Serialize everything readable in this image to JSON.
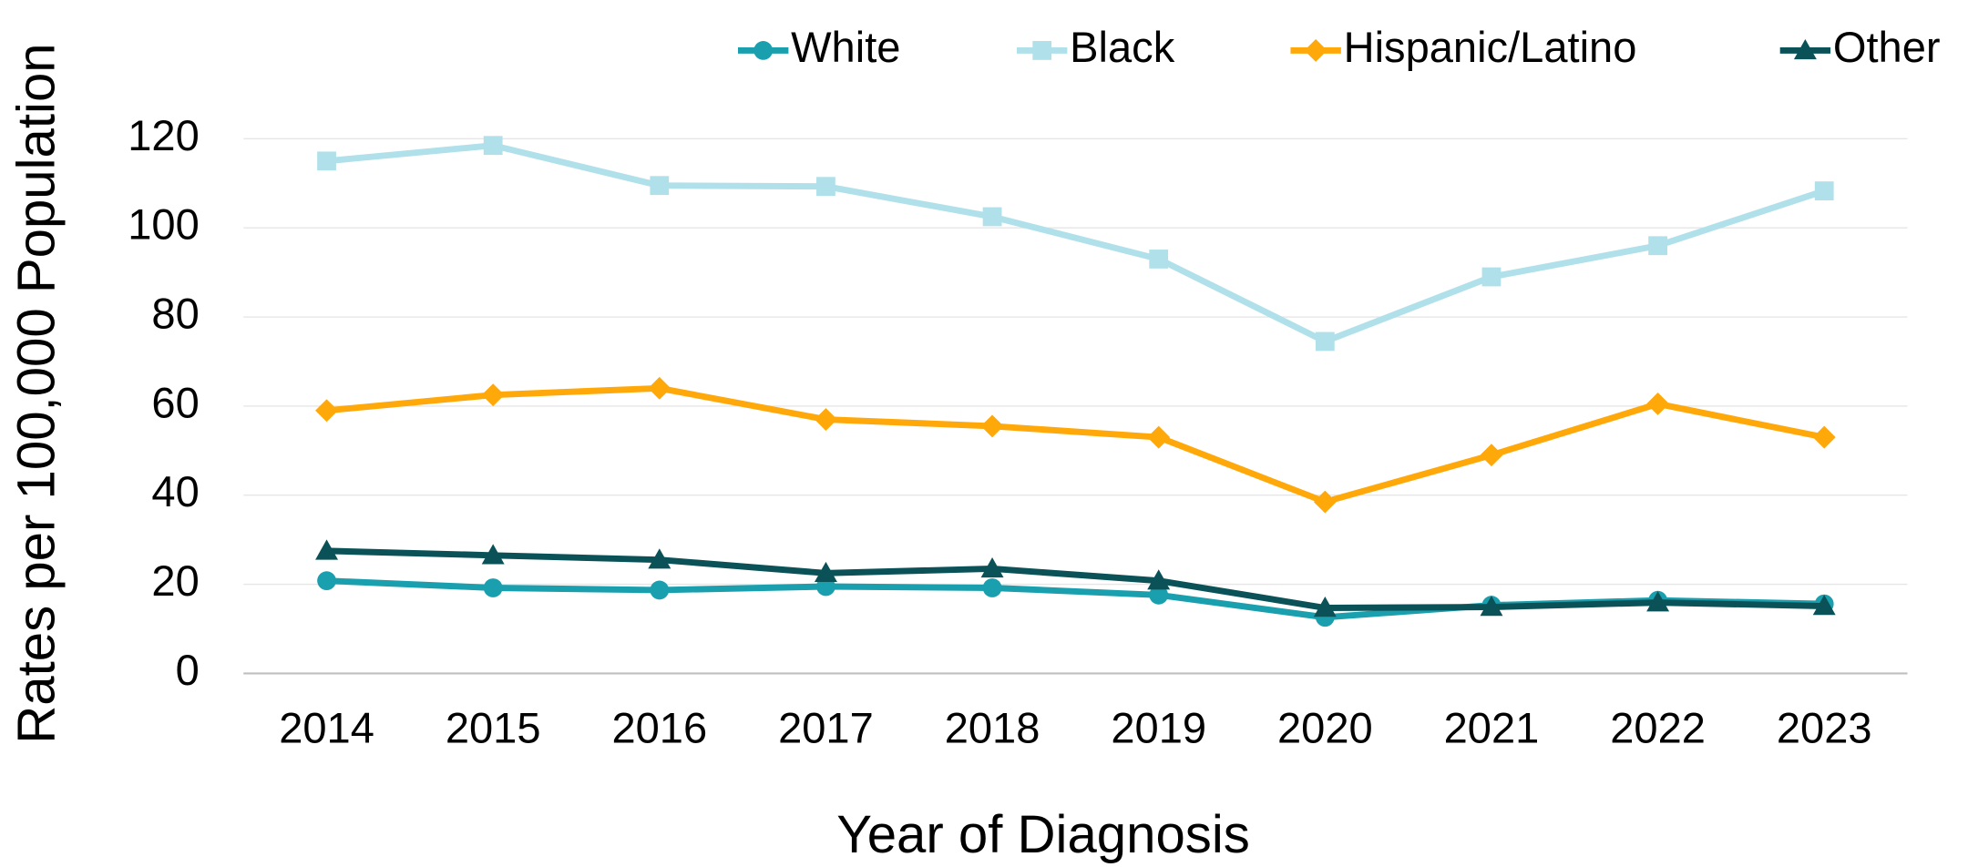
{
  "chart_data": {
    "type": "line",
    "xlabel": "Year of Diagnosis",
    "ylabel": "Rates per 100,000 Population",
    "categories": [
      "2014",
      "2015",
      "2016",
      "2017",
      "2018",
      "2019",
      "2020",
      "2021",
      "2022",
      "2023"
    ],
    "series": [
      {
        "name": "White",
        "color": "#1a9fae",
        "marker": "circle",
        "values": [
          20.8,
          19.2,
          18.7,
          19.5,
          19.2,
          17.6,
          12.6,
          15.3,
          16.4,
          15.6
        ]
      },
      {
        "name": "Black",
        "color": "#b0e0ea",
        "marker": "square",
        "values": [
          115,
          118.5,
          109.5,
          109.3,
          102.5,
          93,
          74.5,
          89,
          96,
          108.3
        ]
      },
      {
        "name": "Hispanic/Latino",
        "color": "#ffa80a",
        "marker": "diamond",
        "values": [
          59,
          62.5,
          64,
          57,
          55.5,
          53,
          38.5,
          49,
          60.5,
          53
        ]
      },
      {
        "name": "Other",
        "color": "#0a5257",
        "marker": "triangle",
        "values": [
          27.5,
          26.5,
          25.5,
          22.5,
          23.5,
          20.8,
          14.7,
          14.9,
          15.9,
          15.1
        ]
      }
    ],
    "ylim": [
      0,
      120
    ],
    "yticks": [
      0,
      20,
      40,
      60,
      80,
      100,
      120
    ],
    "grid": true,
    "legend": "top"
  }
}
